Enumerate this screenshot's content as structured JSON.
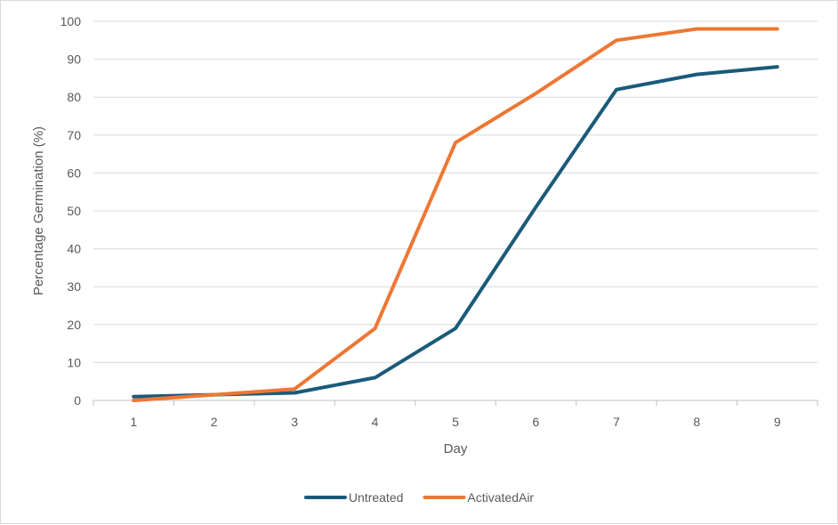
{
  "chart_data": {
    "type": "line",
    "title": "",
    "xlabel": "Day",
    "ylabel": "Percentage Germination (%)",
    "categories": [
      "1",
      "2",
      "3",
      "4",
      "5",
      "6",
      "7",
      "8",
      "9"
    ],
    "ylim": [
      0,
      100
    ],
    "yticks": [
      0,
      10,
      20,
      30,
      40,
      50,
      60,
      70,
      80,
      90,
      100
    ],
    "grid": "horizontal",
    "legend_position": "bottom",
    "series": [
      {
        "name": "Untreated",
        "color": "#1a5a7a",
        "values": [
          1,
          1.5,
          2,
          6,
          19,
          51,
          82,
          86,
          88
        ]
      },
      {
        "name": "ActivatedAir",
        "color": "#ee7733",
        "values": [
          0,
          1.5,
          3,
          19,
          68,
          81,
          95,
          98,
          98
        ]
      }
    ]
  }
}
